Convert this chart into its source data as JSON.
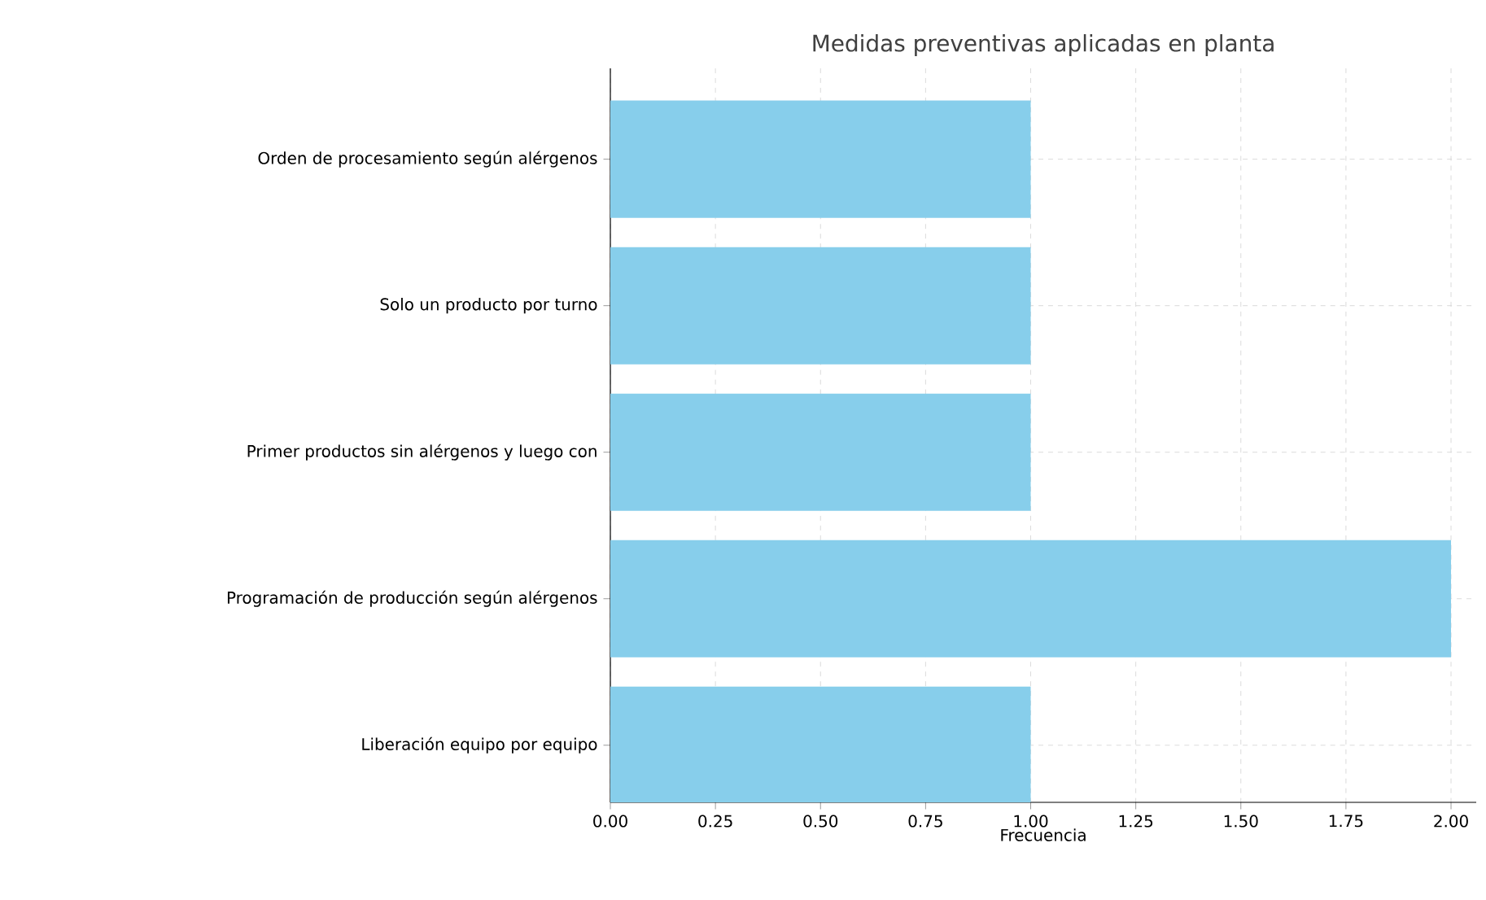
{
  "chart_data": {
    "type": "bar",
    "orientation": "horizontal",
    "title": "Medidas preventivas aplicadas en planta",
    "xlabel": "Frecuencia",
    "categories": [
      "Orden de procesamiento según alérgenos",
      "Solo un producto por turno",
      "Primer productos sin alérgenos y luego con",
      "Programación de producción según alérgenos",
      "Liberación equipo por equipo"
    ],
    "values": [
      1,
      1,
      1,
      2,
      1
    ],
    "color": "#87ceeb",
    "xlim": [
      0,
      2.06
    ],
    "xticks": [
      {
        "value": 0,
        "label": "0.00"
      },
      {
        "value": 0.25,
        "label": "0.25"
      },
      {
        "value": 0.5,
        "label": "0.50"
      },
      {
        "value": 0.75,
        "label": "0.75"
      },
      {
        "value": 1,
        "label": "1.00"
      },
      {
        "value": 1.25,
        "label": "1.25"
      },
      {
        "value": 1.5,
        "label": "1.50"
      },
      {
        "value": 1.75,
        "label": "1.75"
      },
      {
        "value": 2,
        "label": "2.00"
      }
    ],
    "grid": true
  }
}
